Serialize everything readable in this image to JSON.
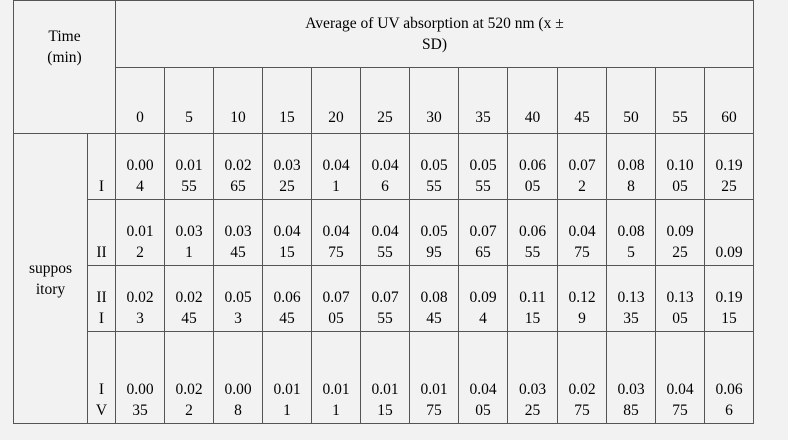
{
  "header": {
    "time_line1": "Time",
    "time_line2": "(min)",
    "title_line1": "Average of UV  absorption at 520 nm (x ±",
    "title_line2": "SD)"
  },
  "times": [
    "0",
    "5",
    "10",
    "15",
    "20",
    "25",
    "30",
    "35",
    "40",
    "45",
    "50",
    "55",
    "60"
  ],
  "group_label": [
    "suppos",
    "itory"
  ],
  "rows": [
    {
      "label": [
        "I"
      ],
      "cells": [
        [
          "0.00",
          "4"
        ],
        [
          "0.01",
          "55"
        ],
        [
          "0.02",
          "65"
        ],
        [
          "0.03",
          "25"
        ],
        [
          "0.04",
          "1"
        ],
        [
          "0.04",
          "6"
        ],
        [
          "0.05",
          "55"
        ],
        [
          "0.05",
          "55"
        ],
        [
          "0.06",
          "05"
        ],
        [
          "0.07",
          "2"
        ],
        [
          "0.08",
          "8"
        ],
        [
          "0.10",
          "05"
        ],
        [
          "0.19",
          "25"
        ]
      ]
    },
    {
      "label": [
        "II"
      ],
      "cells": [
        [
          "0.01",
          "2"
        ],
        [
          "0.03",
          "1"
        ],
        [
          "0.03",
          "45"
        ],
        [
          "0.04",
          "15"
        ],
        [
          "0.04",
          "75"
        ],
        [
          "0.04",
          "55"
        ],
        [
          "0.05",
          "95"
        ],
        [
          "0.07",
          "65"
        ],
        [
          "0.06",
          "55"
        ],
        [
          "0.04",
          "75"
        ],
        [
          "0.08",
          "5"
        ],
        [
          "0.09",
          "25"
        ],
        [
          "",
          "0.09"
        ]
      ]
    },
    {
      "label": [
        "II",
        "I"
      ],
      "cells": [
        [
          "0.02",
          "3"
        ],
        [
          "0.02",
          "45"
        ],
        [
          "0.05",
          "3"
        ],
        [
          "0.06",
          "45"
        ],
        [
          "0.07",
          "05"
        ],
        [
          "0.07",
          "55"
        ],
        [
          "0.08",
          "45"
        ],
        [
          "0.09",
          "4"
        ],
        [
          "0.11",
          "15"
        ],
        [
          "0.12",
          "9"
        ],
        [
          "0.13",
          "35"
        ],
        [
          "0.13",
          "05"
        ],
        [
          "0.19",
          "15"
        ]
      ]
    },
    {
      "label": [
        "I",
        "V"
      ],
      "cells": [
        [
          "0.00",
          "35"
        ],
        [
          "0.02",
          "2"
        ],
        [
          "0.00",
          "8"
        ],
        [
          "0.01",
          "1"
        ],
        [
          "0.01",
          "1"
        ],
        [
          "0.01",
          "15"
        ],
        [
          "0.01",
          "75"
        ],
        [
          "0.04",
          "05"
        ],
        [
          "0.03",
          "25"
        ],
        [
          "0.02",
          "75"
        ],
        [
          "0.03",
          "85"
        ],
        [
          "0.04",
          "75"
        ],
        [
          "0.06",
          "6"
        ]
      ]
    }
  ]
}
